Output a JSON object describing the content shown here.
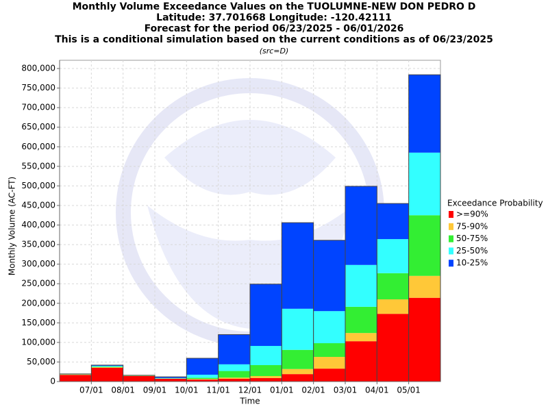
{
  "chart_data": {
    "type": "stacked_bar",
    "title": "Monthly Volume Exceedance Values on the TUOLUMNE-NEW DON PEDRO D",
    "subtitle_lines": [
      "Latitude: 37.701668 Longitude: -120.42111",
      "Forecast for the period 06/23/2025 - 06/01/2026",
      "This is a conditional simulation based on the current conditions as of 06/23/2025"
    ],
    "source_note": "(src=D)",
    "x_label": "Time",
    "y_label": "Monthly Volume (AC-FT)",
    "legend_title": "Exceedance Probability",
    "legend_position": "right",
    "grid": true,
    "categories": [
      null,
      "07/01",
      "08/01",
      "09/01",
      "10/01",
      "11/01",
      "12/01",
      "01/01",
      "02/01",
      "03/01",
      "04/01",
      "05/01"
    ],
    "series": [
      {
        "name": ">=90%",
        "color": "#ff0000",
        "values": [
          17000,
          35000,
          14000,
          7000,
          5000,
          7000,
          9000,
          19000,
          33000,
          103000,
          173000,
          214000
        ]
      },
      {
        "name": "75-90%",
        "color": "#ffc838",
        "values": [
          1000,
          1500,
          500,
          500,
          1500,
          3000,
          5000,
          13000,
          30000,
          21000,
          37000,
          56000
        ]
      },
      {
        "name": "50-75%",
        "color": "#33ee33",
        "values": [
          500,
          1500,
          500,
          500,
          3000,
          17000,
          28000,
          49000,
          35000,
          67000,
          67000,
          155000
        ]
      },
      {
        "name": "25-50%",
        "color": "#33ffff",
        "values": [
          500,
          2000,
          500,
          1000,
          8000,
          17000,
          49000,
          105000,
          82000,
          107000,
          87000,
          160000
        ]
      },
      {
        "name": "10-25%",
        "color": "#0044ff",
        "values": [
          500,
          2000,
          500,
          3000,
          42000,
          76000,
          158000,
          220000,
          181000,
          201000,
          91000,
          199000
        ]
      }
    ],
    "ylim": [
      0,
      800000
    ],
    "yticks": [
      0,
      {
        "value": 50000,
        "label": "50,000"
      },
      {
        "value": 100000,
        "label": "100,000"
      },
      {
        "value": 150000,
        "label": "150,000"
      },
      {
        "value": 200000,
        "label": "200,000"
      },
      {
        "value": 250000,
        "label": "250,000"
      },
      {
        "value": 300000,
        "label": "300,000"
      },
      {
        "value": 350000,
        "label": "350,000"
      },
      {
        "value": 400000,
        "label": "400,000"
      },
      {
        "value": 450000,
        "label": "450,000"
      },
      {
        "value": 500000,
        "label": "500,000"
      },
      {
        "value": 550000,
        "label": "550,000"
      },
      {
        "value": 600000,
        "label": "600,000"
      },
      {
        "value": 650000,
        "label": "650,000"
      },
      {
        "value": 700000,
        "label": "700,000"
      },
      {
        "value": 750000,
        "label": "750,000"
      },
      {
        "value": 800000,
        "label": "800,000"
      }
    ]
  }
}
